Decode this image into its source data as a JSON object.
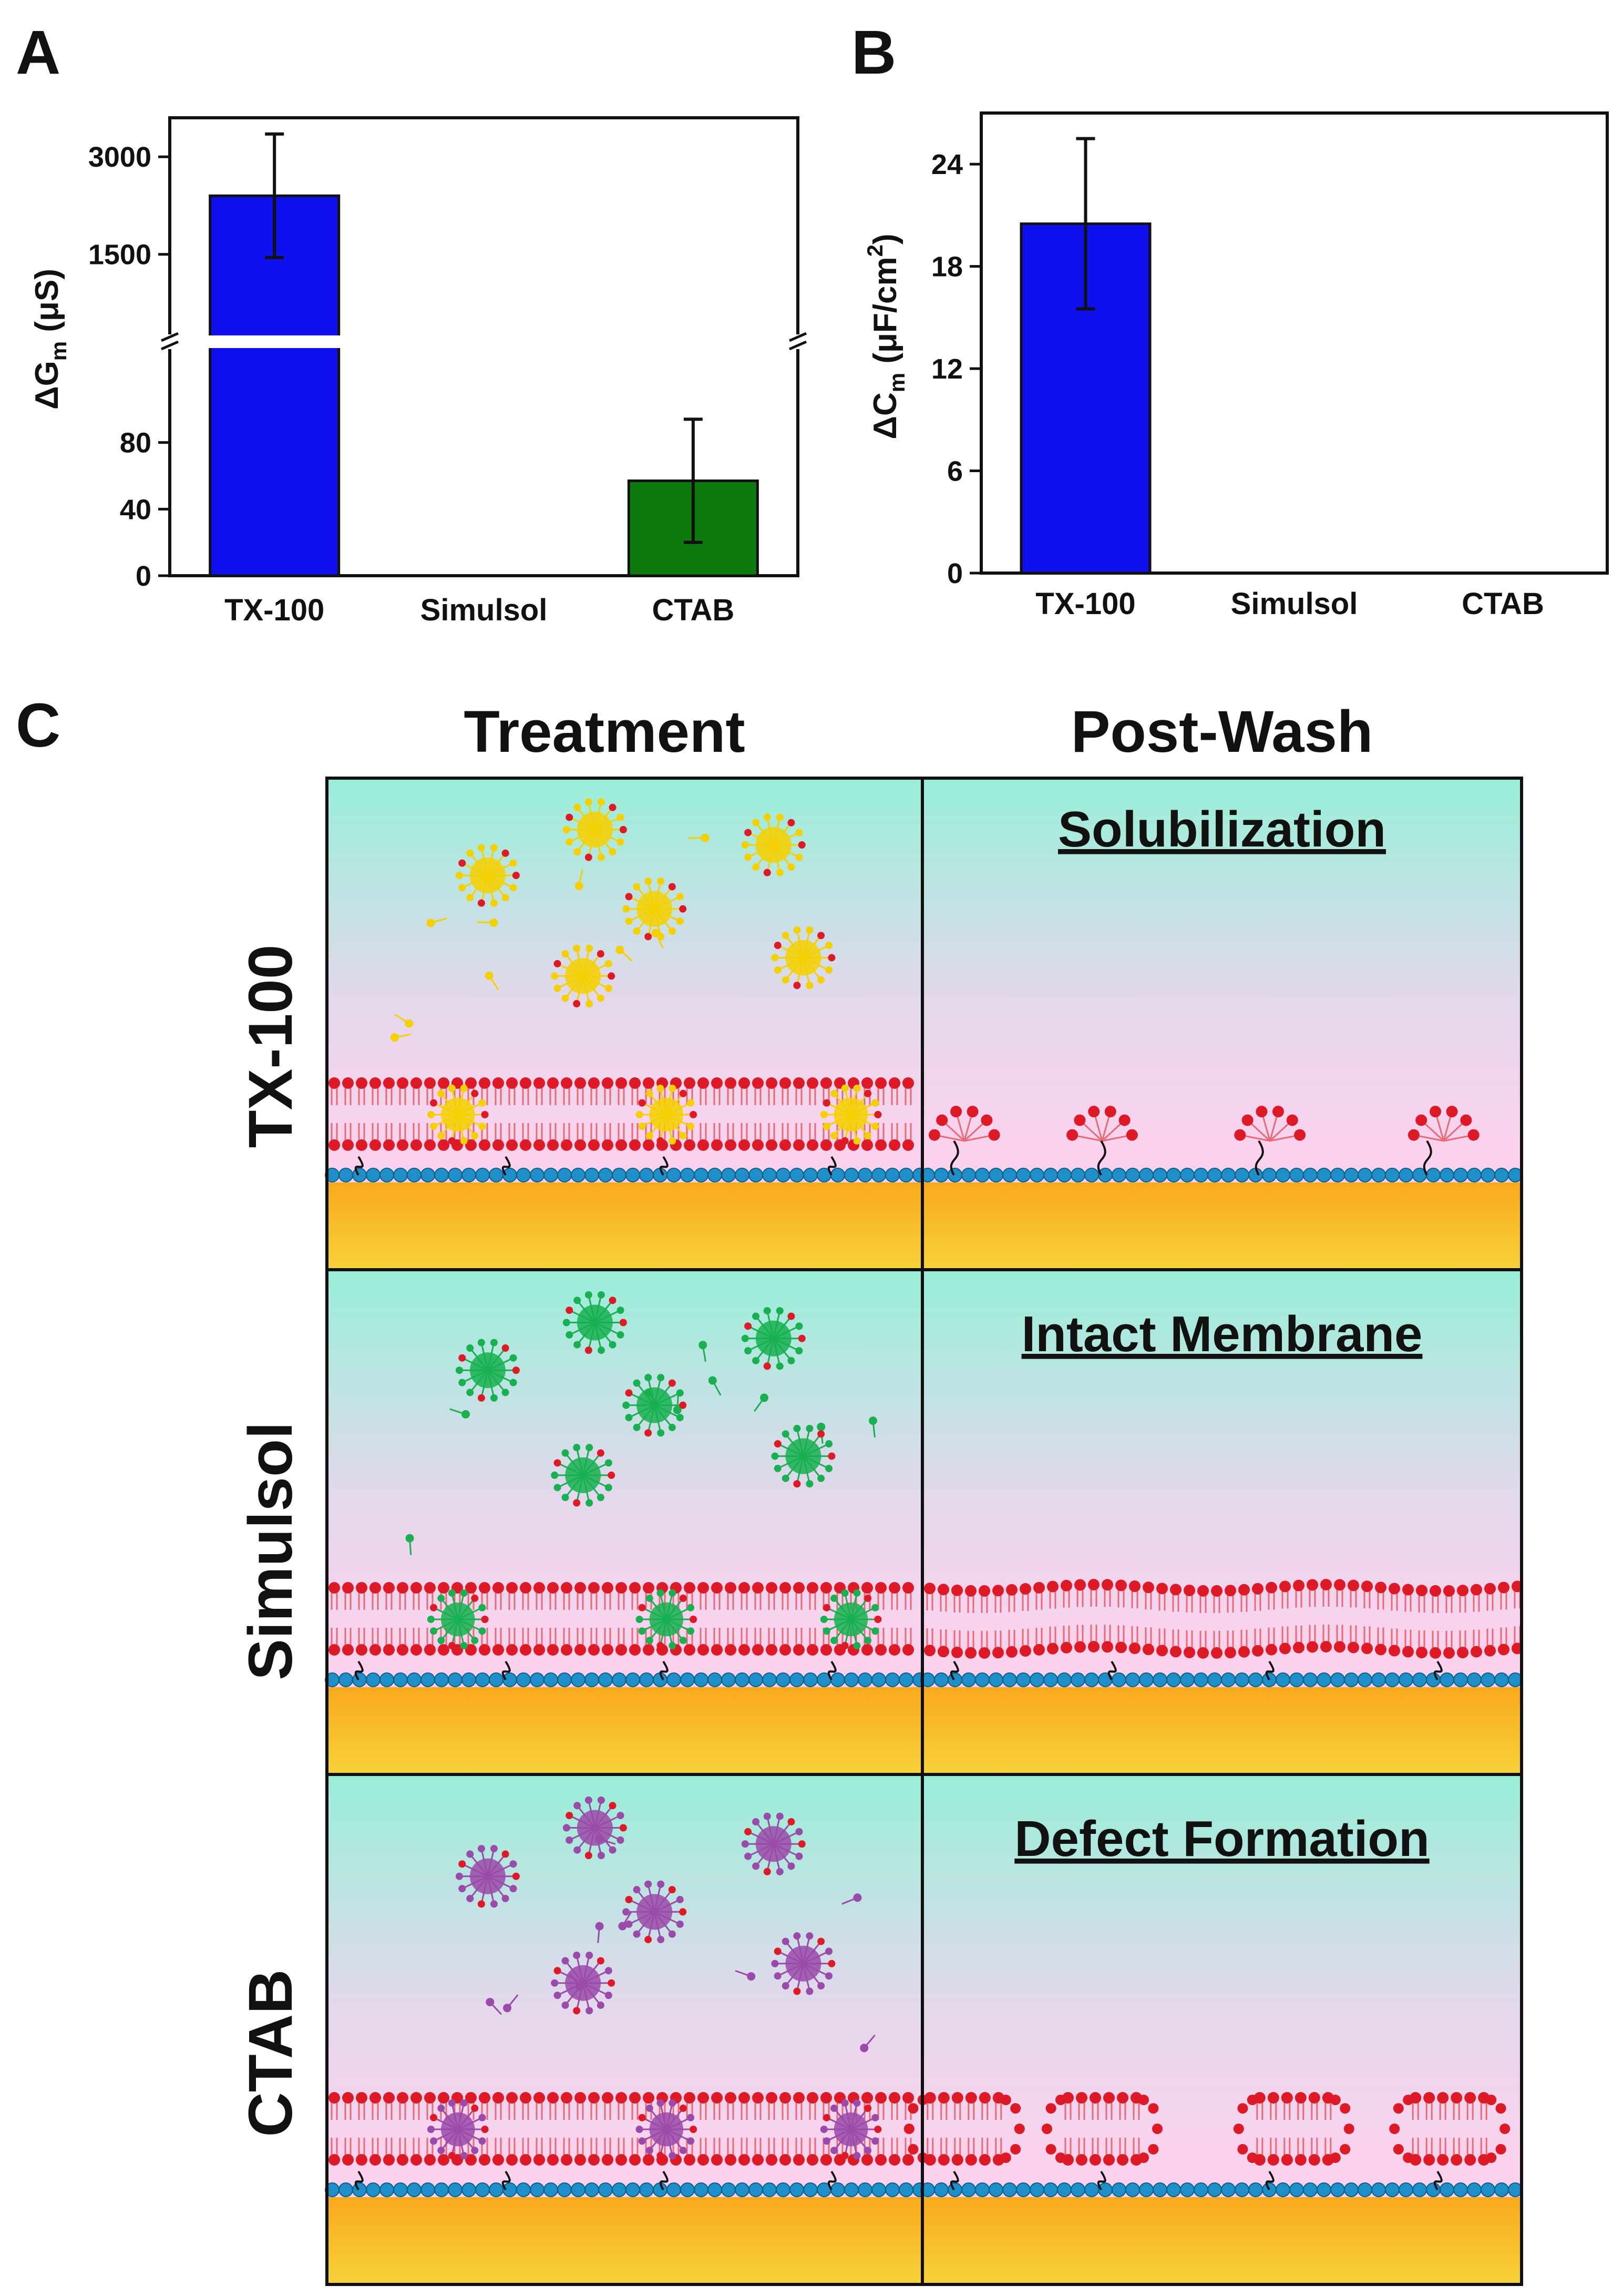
{
  "panels": {
    "a": "A",
    "b": "B",
    "c": "C"
  },
  "chart_data": [
    {
      "panel": "A",
      "type": "bar",
      "categories": [
        "TX-100",
        "Simulsol",
        "CTAB"
      ],
      "values": [
        2400,
        0,
        57
      ],
      "errors": [
        950,
        0,
        37
      ],
      "colors": [
        "#1010ee",
        "#1010ee",
        "#0d7a0d"
      ],
      "ylabel": "ΔGm (μS)",
      "ylabel_main": "ΔG",
      "ylabel_sub": "m",
      "ylabel_units": " (μS)",
      "axis_break": true,
      "lower_range": [
        0,
        120
      ],
      "lower_ticks": [
        "0",
        "40",
        "80"
      ],
      "lower_tick_values": [
        0,
        40,
        80
      ],
      "upper_range": [
        600,
        3600
      ],
      "upper_ticks": [
        "1500",
        "3000"
      ],
      "upper_tick_values": [
        1500,
        3000
      ]
    },
    {
      "panel": "B",
      "type": "bar",
      "categories": [
        "TX-100",
        "Simulsol",
        "CTAB"
      ],
      "values": [
        20.5,
        0,
        0
      ],
      "errors": [
        5,
        0,
        0
      ],
      "colors": [
        "#1010ee",
        "#1010ee",
        "#1010ee"
      ],
      "ylabel": "ΔCm (μF/cm2)",
      "ylabel_main": "ΔC",
      "ylabel_sub": "m",
      "ylabel_units": " (μF/cm",
      "ylabel_sup": "2",
      "ylabel_close": ")",
      "ylim": [
        0,
        27
      ],
      "ticks": [
        "0",
        "6",
        "12",
        "18",
        "24"
      ],
      "tick_values": [
        0,
        6,
        12,
        18,
        24
      ]
    }
  ],
  "schematic": {
    "columns": [
      "Treatment",
      "Post-Wash"
    ],
    "rows": [
      {
        "label": "TX-100",
        "color": "#f5d000",
        "result": "Solubilization"
      },
      {
        "label": "Simulsol",
        "color": "#18b050",
        "result": "Intact Membrane"
      },
      {
        "label": "CTAB",
        "color": "#9a4aa8",
        "result": "Defect Formation"
      }
    ]
  }
}
